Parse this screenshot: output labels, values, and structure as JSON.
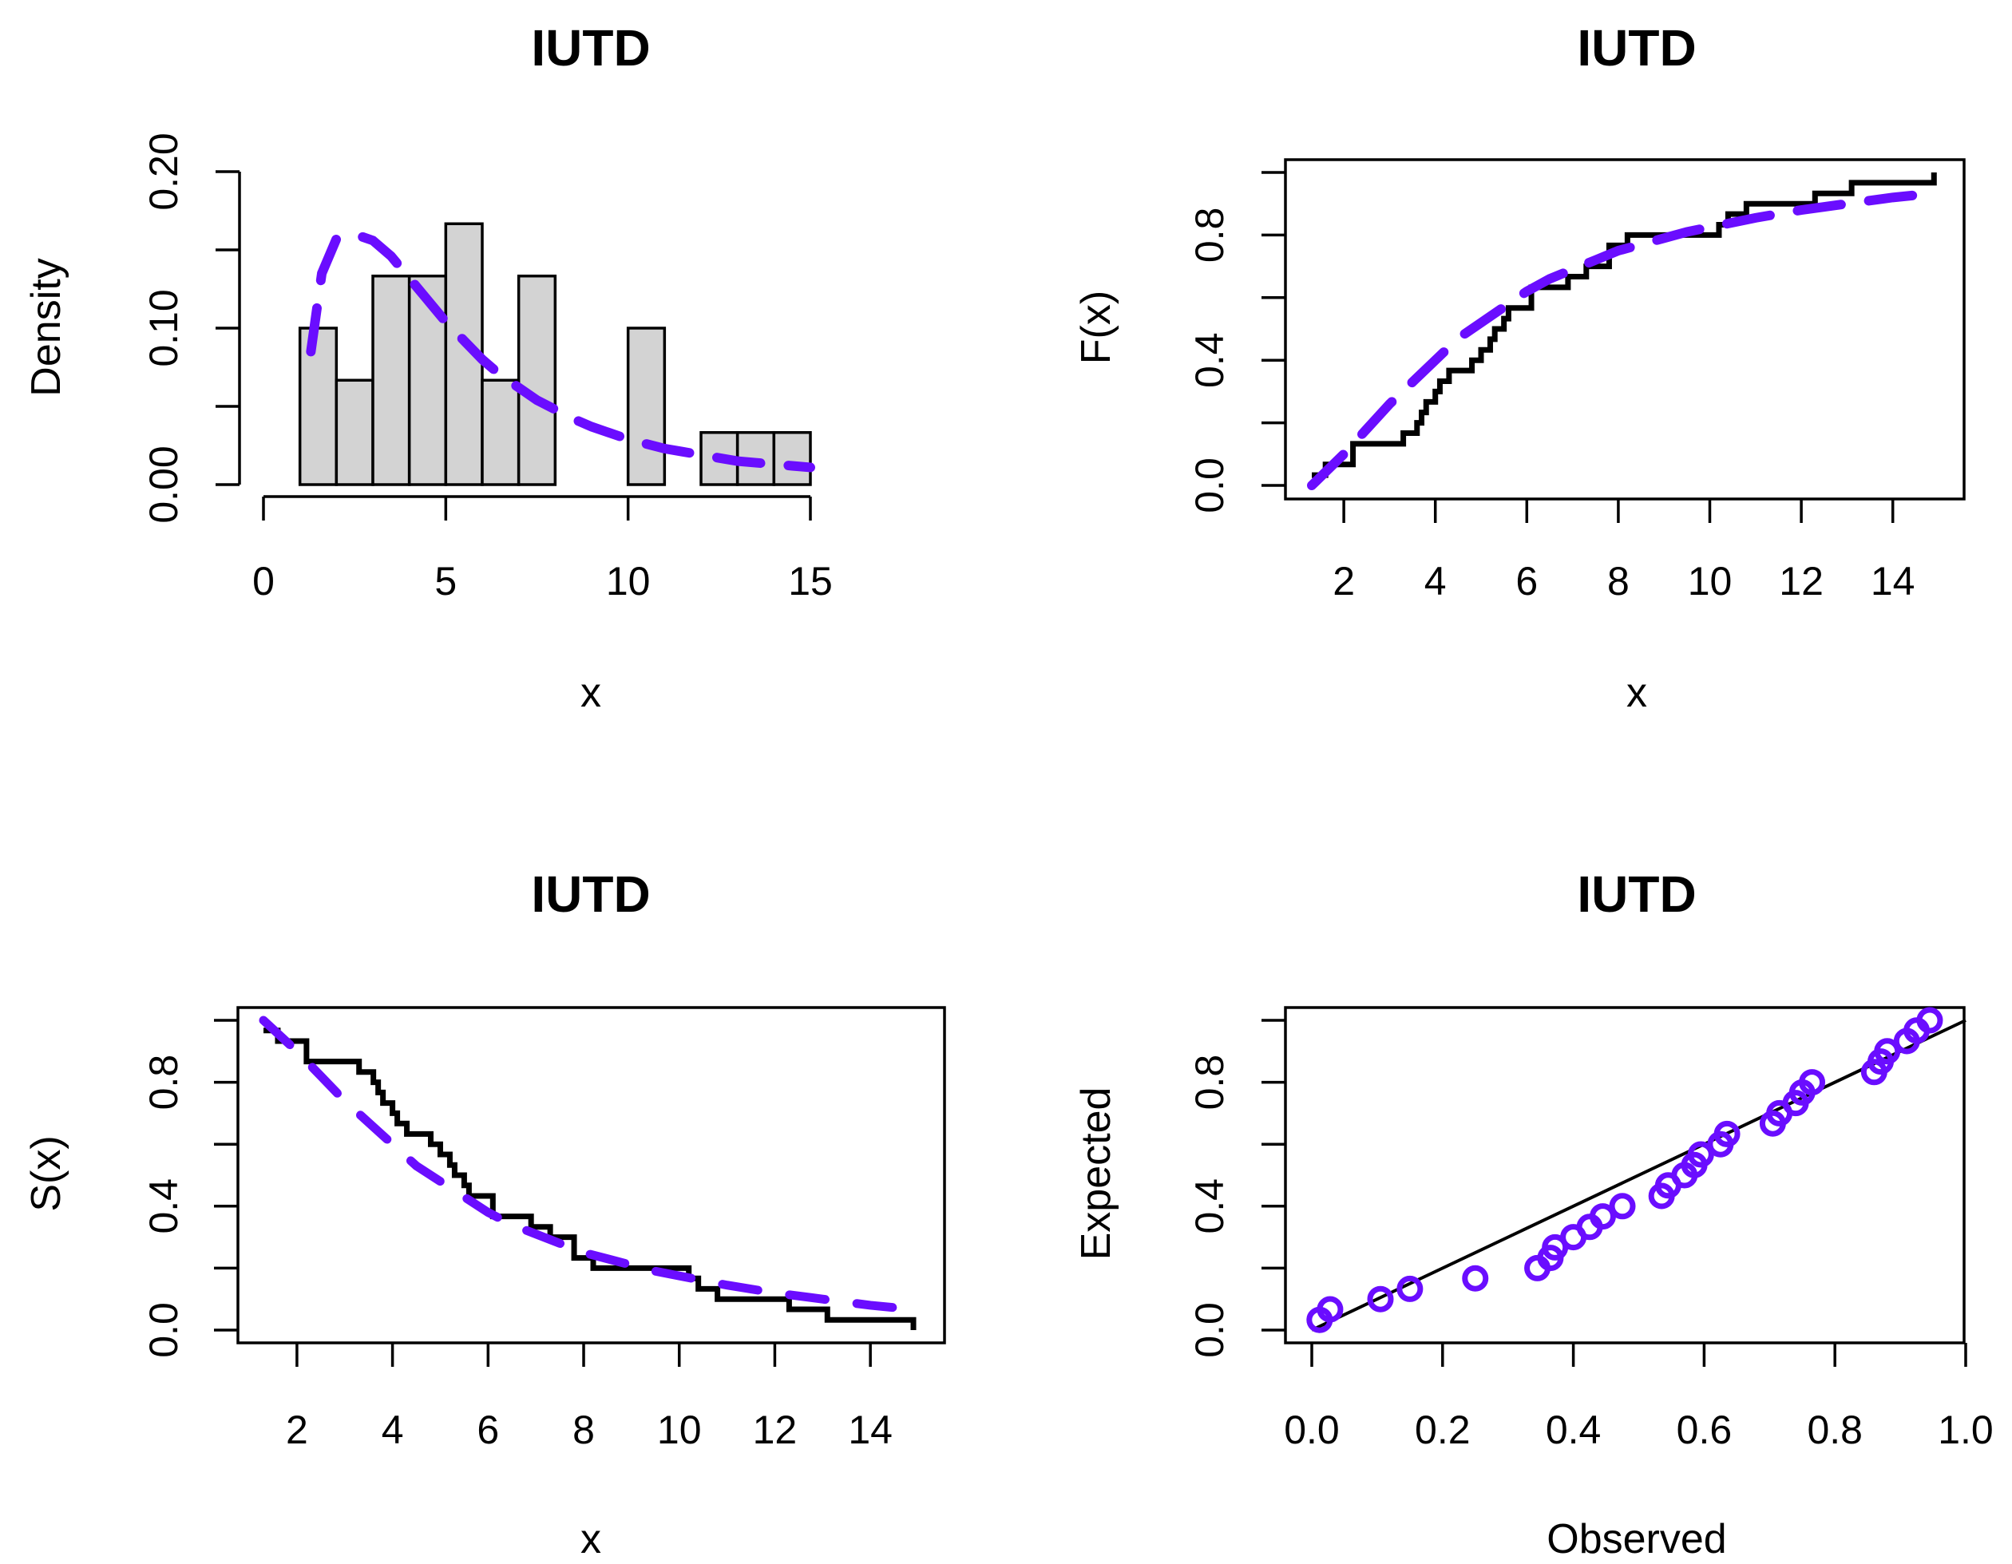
{
  "colors": {
    "fit": "#6a0dff",
    "hist_fill": "#d3d3d3",
    "empirical": "#000000"
  },
  "chart_data": [
    {
      "type": "bar",
      "title": "IUTD",
      "xlabel": "x",
      "ylabel": "Density",
      "xlim": [
        0,
        15
      ],
      "ylim": [
        0,
        0.2
      ],
      "x_ticks": [
        "0",
        "5",
        "10",
        "15"
      ],
      "y_ticks": [
        "0.00",
        "0.05",
        "0.10",
        "0.15",
        "0.20"
      ],
      "y_tick_labels": [
        "0.00",
        "0.10",
        "0.20"
      ],
      "histogram": {
        "bin_edges": [
          1,
          2,
          3,
          4,
          5,
          6,
          7,
          8,
          9,
          10,
          11,
          12,
          13,
          14,
          15
        ],
        "density": [
          0.1,
          0.0667,
          0.1333,
          0.1333,
          0.1667,
          0.0667,
          0.1333,
          0,
          0,
          0.1,
          0,
          0.0333,
          0.0333,
          0.0333
        ]
      },
      "fitted_density": {
        "style": "dashed",
        "x": [
          1.3,
          1.6,
          2.0,
          2.5,
          3.0,
          3.5,
          4.0,
          4.5,
          5.0,
          5.5,
          6.0,
          6.5,
          7.0,
          7.5,
          8.0,
          8.5,
          9.0,
          9.5,
          10.0,
          10.5,
          11.0,
          11.5,
          12.0,
          12.5,
          13.0,
          13.5,
          14.0,
          14.5,
          15.0
        ],
        "y": [
          0.085,
          0.135,
          0.157,
          0.16,
          0.156,
          0.146,
          0.132,
          0.118,
          0.104,
          0.092,
          0.08,
          0.07,
          0.062,
          0.054,
          0.048,
          0.042,
          0.037,
          0.033,
          0.029,
          0.026,
          0.023,
          0.021,
          0.019,
          0.017,
          0.015,
          0.014,
          0.013,
          0.012,
          0.011
        ]
      }
    },
    {
      "type": "line",
      "title": "IUTD",
      "xlabel": "x",
      "ylabel": "F(x)",
      "xlim": [
        1.3,
        15
      ],
      "ylim": [
        0,
        1
      ],
      "x_ticks": [
        "2",
        "4",
        "6",
        "8",
        "10",
        "12",
        "14"
      ],
      "y_ticks": [
        "0.0",
        "0.2",
        "0.4",
        "0.6",
        "0.8",
        "1.0"
      ],
      "y_tick_labels": [
        "0.0",
        "0.4",
        "0.8"
      ],
      "empirical_cdf": {
        "x": [
          1.3,
          1.6,
          2.2,
          3.3,
          3.6,
          3.7,
          3.8,
          4.0,
          4.1,
          4.3,
          4.8,
          5.0,
          5.2,
          5.3,
          5.5,
          5.6,
          6.1,
          6.9,
          7.3,
          7.8,
          8.2,
          10.2,
          10.4,
          10.8,
          11.5,
          12.3,
          13.1,
          14.9
        ],
        "y": [
          0.033,
          0.067,
          0.133,
          0.167,
          0.2,
          0.233,
          0.267,
          0.3,
          0.333,
          0.367,
          0.4,
          0.433,
          0.467,
          0.5,
          0.533,
          0.567,
          0.633,
          0.667,
          0.7,
          0.767,
          0.8,
          0.833,
          0.867,
          0.9,
          0.9,
          0.933,
          0.967,
          1.0
        ]
      },
      "fitted_cdf": {
        "style": "dashed",
        "x": [
          1.3,
          2.0,
          2.5,
          3.0,
          3.5,
          4.0,
          4.5,
          5.0,
          5.5,
          6.0,
          6.5,
          7.0,
          7.5,
          8.0,
          8.5,
          9.0,
          9.5,
          10.0,
          11.0,
          12.0,
          13.0,
          14.0,
          15.0
        ],
        "y": [
          0.0,
          0.1,
          0.18,
          0.26,
          0.33,
          0.4,
          0.47,
          0.52,
          0.57,
          0.62,
          0.66,
          0.69,
          0.72,
          0.75,
          0.77,
          0.79,
          0.81,
          0.825,
          0.855,
          0.88,
          0.9,
          0.92,
          0.935
        ]
      }
    },
    {
      "type": "line",
      "title": "IUTD",
      "xlabel": "x",
      "ylabel": "S(x)",
      "xlim": [
        1.3,
        15
      ],
      "ylim": [
        0,
        1
      ],
      "x_ticks": [
        "2",
        "4",
        "6",
        "8",
        "10",
        "12",
        "14"
      ],
      "y_ticks": [
        "0.0",
        "0.2",
        "0.4",
        "0.6",
        "0.8",
        "1.0"
      ],
      "y_tick_labels": [
        "0.0",
        "0.4",
        "0.8"
      ],
      "empirical_survival": {
        "x": [
          1.3,
          1.6,
          2.2,
          3.3,
          3.6,
          3.7,
          3.8,
          4.0,
          4.1,
          4.3,
          4.8,
          5.0,
          5.2,
          5.3,
          5.5,
          5.6,
          6.1,
          6.9,
          7.3,
          7.8,
          8.2,
          10.2,
          10.4,
          10.8,
          12.3,
          13.1,
          14.9
        ],
        "y": [
          0.967,
          0.933,
          0.867,
          0.833,
          0.8,
          0.767,
          0.733,
          0.7,
          0.667,
          0.633,
          0.6,
          0.567,
          0.533,
          0.5,
          0.467,
          0.433,
          0.367,
          0.333,
          0.3,
          0.233,
          0.2,
          0.167,
          0.133,
          0.1,
          0.067,
          0.033,
          0.0
        ]
      },
      "fitted_survival": {
        "style": "dashed",
        "x": [
          1.3,
          2.0,
          2.5,
          3.0,
          3.5,
          4.0,
          4.5,
          5.0,
          5.5,
          6.0,
          6.5,
          7.0,
          7.5,
          8.0,
          8.5,
          9.0,
          9.5,
          10.0,
          11.0,
          12.0,
          13.0,
          14.0,
          15.0
        ],
        "y": [
          1.0,
          0.9,
          0.82,
          0.74,
          0.67,
          0.6,
          0.53,
          0.48,
          0.43,
          0.38,
          0.34,
          0.31,
          0.28,
          0.25,
          0.23,
          0.21,
          0.19,
          0.175,
          0.145,
          0.12,
          0.1,
          0.08,
          0.065
        ]
      }
    },
    {
      "type": "scatter",
      "title": "IUTD",
      "xlabel": "Observed",
      "ylabel": "Expected",
      "xlim": [
        0,
        1
      ],
      "ylim": [
        0,
        1
      ],
      "x_ticks": [
        "0.0",
        "0.2",
        "0.4",
        "0.6",
        "0.8",
        "1.0"
      ],
      "y_ticks": [
        "0.0",
        "0.2",
        "0.4",
        "0.6",
        "0.8",
        "1.0"
      ],
      "y_tick_labels": [
        "0.0",
        "0.4",
        "0.8"
      ],
      "reference_line": {
        "x": [
          0,
          1
        ],
        "y": [
          0,
          1
        ]
      },
      "points": {
        "x": [
          0.012,
          0.028,
          0.105,
          0.15,
          0.25,
          0.345,
          0.365,
          0.372,
          0.4,
          0.425,
          0.445,
          0.475,
          0.535,
          0.545,
          0.57,
          0.585,
          0.595,
          0.625,
          0.635,
          0.705,
          0.715,
          0.74,
          0.75,
          0.765,
          0.86,
          0.87,
          0.88,
          0.91,
          0.925,
          0.945
        ],
        "y": [
          0.033,
          0.067,
          0.1,
          0.133,
          0.167,
          0.2,
          0.233,
          0.267,
          0.3,
          0.333,
          0.367,
          0.4,
          0.433,
          0.467,
          0.5,
          0.533,
          0.567,
          0.6,
          0.633,
          0.667,
          0.7,
          0.733,
          0.767,
          0.8,
          0.833,
          0.867,
          0.9,
          0.933,
          0.967,
          1.0
        ]
      }
    }
  ]
}
